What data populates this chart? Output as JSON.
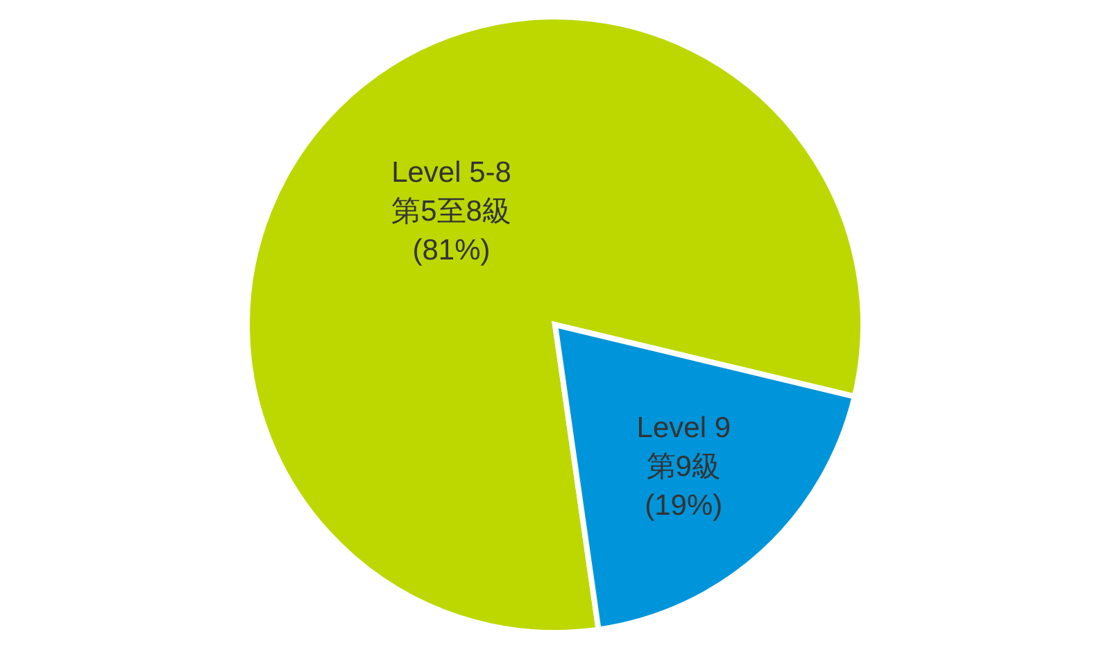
{
  "chart_data": {
    "type": "pie",
    "categories": [
      "Level 5-8\n第5至8級",
      "Level 9\n第9級"
    ],
    "values": [
      81,
      19
    ],
    "value_labels": [
      "(81%)",
      "(19%)"
    ],
    "colors": [
      "#bcd800",
      "#0095da"
    ]
  }
}
